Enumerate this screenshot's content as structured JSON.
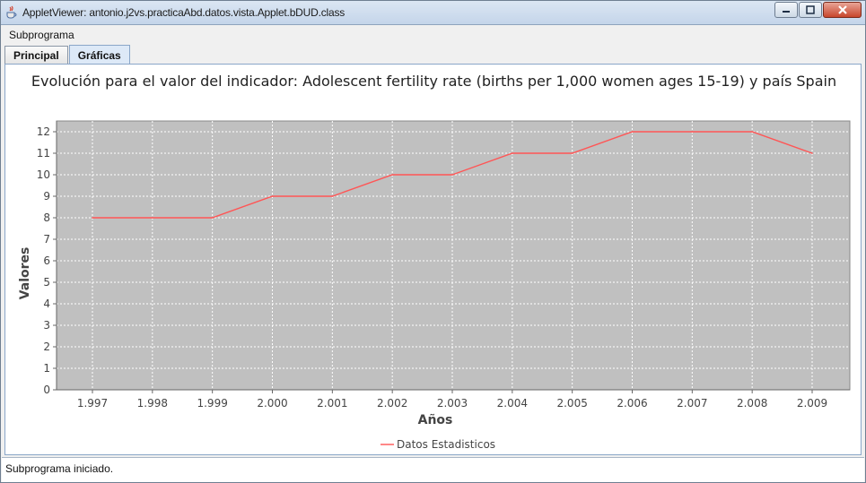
{
  "window": {
    "title": "AppletViewer: antonio.j2vs.practicaAbd.datos.vista.Applet.bDUD.class"
  },
  "menubar": {
    "items": [
      {
        "label": "Subprograma"
      }
    ]
  },
  "tabs": [
    {
      "label": "Principal",
      "active": false
    },
    {
      "label": "Gráficas",
      "active": true
    }
  ],
  "chart_data": {
    "type": "line",
    "title": "Evolución para el valor del indicador: Adolescent fertility rate (births per 1,000 women ages 15-19) y país Spain",
    "xlabel": "Años",
    "ylabel": "Valores",
    "categories": [
      "1.997",
      "1.998",
      "1.999",
      "2.000",
      "2.001",
      "2.002",
      "2.003",
      "2.004",
      "2.005",
      "2.006",
      "2.007",
      "2.008",
      "2.009"
    ],
    "series": [
      {
        "name": "Datos Estadisticos",
        "values": [
          8,
          8,
          8,
          9,
          9,
          10,
          10,
          11,
          11,
          12,
          12,
          12,
          11
        ]
      }
    ],
    "ylim": [
      0,
      12.5
    ],
    "yticks": [
      0,
      1,
      2,
      3,
      4,
      5,
      6,
      7,
      8,
      9,
      10,
      11,
      12
    ],
    "grid": true,
    "legend_position": "bottom",
    "colors": {
      "plot_background": "#c0c0c0",
      "line": "#ff5555",
      "grid": "#ffffff"
    }
  },
  "status": {
    "text": "Subprograma iniciado."
  }
}
